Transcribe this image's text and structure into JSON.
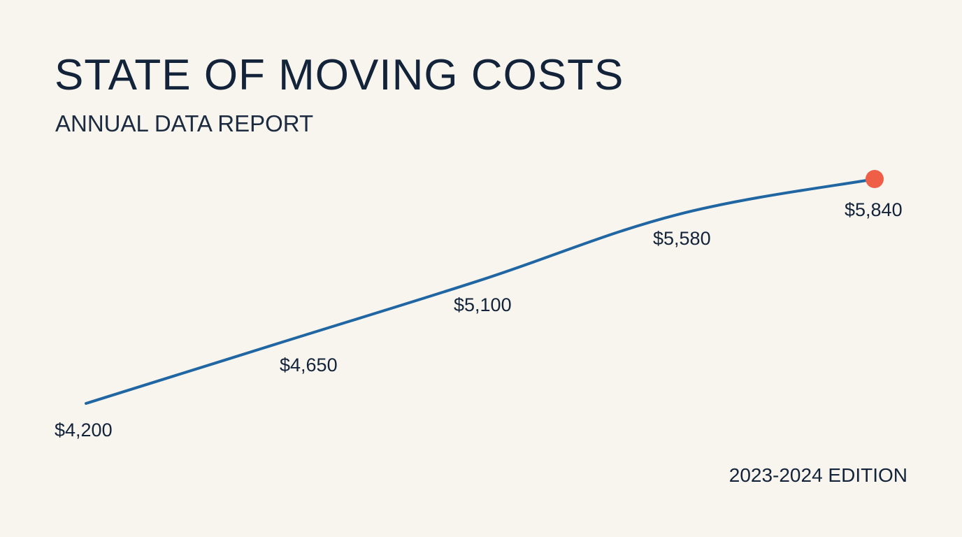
{
  "header": {
    "title": "STATE OF MOVING COSTS",
    "subtitle": "ANNUAL DATA REPORT"
  },
  "footer": {
    "edition": "2023-2024 EDITION"
  },
  "colors": {
    "background": "#f8f5ee",
    "line": "#1f66a3",
    "highlight_point": "#ef5f47",
    "text": "#13233a"
  },
  "chart_data": {
    "type": "line",
    "title": "STATE OF MOVING COSTS",
    "subtitle": "ANNUAL DATA REPORT",
    "xlabel": "",
    "ylabel": "",
    "grid": false,
    "legend": "none",
    "axes_visible": false,
    "series": [
      {
        "values": [
          4200,
          4650,
          5100,
          5580,
          5840
        ],
        "labels": [
          "$4,200",
          "$4,650",
          "$5,100",
          "$5,580",
          "$5,840"
        ],
        "highlight_last_point": true
      }
    ]
  }
}
